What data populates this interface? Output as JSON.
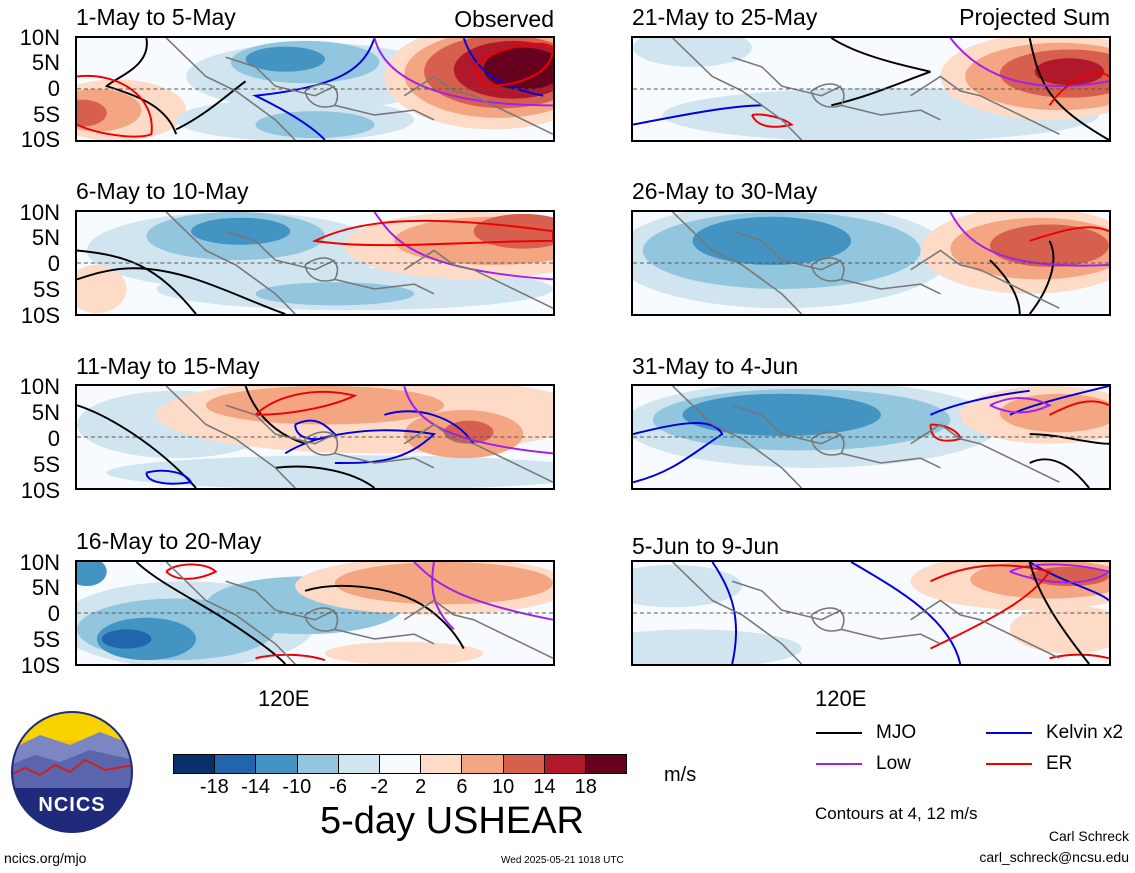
{
  "panels": [
    {
      "title": "1-May to 5-May",
      "tag": "Observed"
    },
    {
      "title": "21-May to 25-May",
      "tag": "Projected Sum"
    },
    {
      "title": "6-May to 10-May",
      "tag": ""
    },
    {
      "title": "26-May to 30-May",
      "tag": ""
    },
    {
      "title": "11-May to 15-May",
      "tag": ""
    },
    {
      "title": "31-May to 4-Jun",
      "tag": ""
    },
    {
      "title": "16-May to 20-May",
      "tag": ""
    },
    {
      "title": "5-Jun to 9-Jun",
      "tag": ""
    }
  ],
  "lat_labels": [
    "10N",
    "5N",
    "0",
    "5S",
    "10S"
  ],
  "lon_label": "120E",
  "colorbar": {
    "ticks": [
      "-18",
      "-14",
      "-10",
      "-6",
      "-2",
      "2",
      "6",
      "10",
      "14",
      "18"
    ],
    "colors": [
      "#08306b",
      "#2166ac",
      "#4393c3",
      "#92c5de",
      "#d1e5f0",
      "#f7fbff",
      "#fddbc7",
      "#f4a582",
      "#d6604d",
      "#b2182b",
      "#67001f"
    ],
    "unit": "m/s"
  },
  "main_title": "5-day USHEAR",
  "legend": [
    {
      "label": "MJO",
      "color": "#000000"
    },
    {
      "label": "Kelvin x2",
      "color": "#0000dd"
    },
    {
      "label": "Low",
      "color": "#a020f0"
    },
    {
      "label": "ER",
      "color": "#ee0000"
    }
  ],
  "contours_note": "Contours at 4, 12 m/s",
  "author": "Carl Schreck",
  "email": "carl_schreck@ncsu.edu",
  "site": "ncics.org/mjo",
  "timestamp": "Wed 2025-05-21 1018 UTC",
  "logo_text": "NCICS"
}
